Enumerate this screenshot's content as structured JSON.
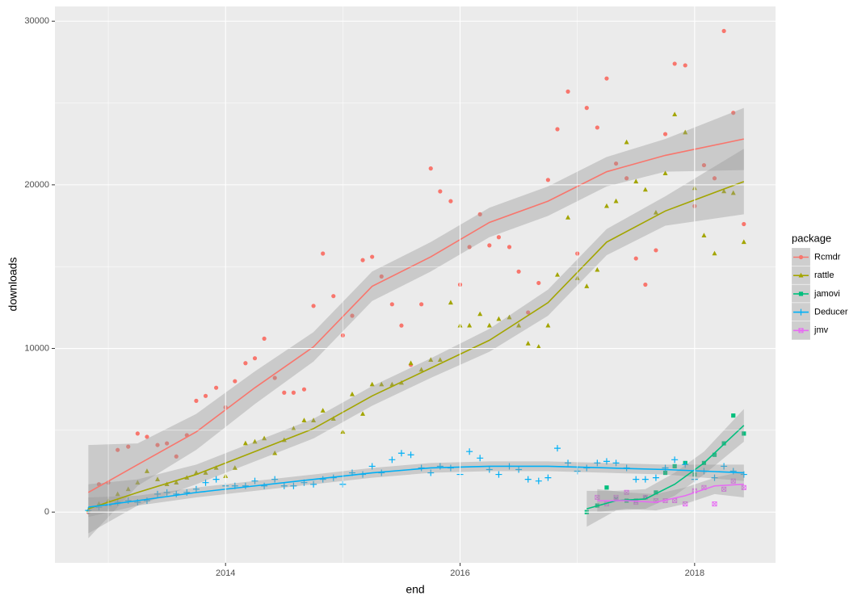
{
  "chart_data": {
    "type": "scatter",
    "x_label": "end",
    "y_label": "downloads",
    "xlim": [
      2012.545,
      2018.69
    ],
    "ylim": [
      -3100,
      30900
    ],
    "xticks": [
      2014,
      2016,
      2018
    ],
    "yticks": [
      0,
      10000,
      20000,
      30000
    ],
    "grid": true,
    "legend_title": "package",
    "legend_position": "right",
    "x": [
      2012.83,
      2012.92,
      2013,
      2013.08,
      2013.17,
      2013.25,
      2013.33,
      2013.42,
      2013.5,
      2013.58,
      2013.67,
      2013.75,
      2013.83,
      2013.92,
      2014,
      2014.08,
      2014.17,
      2014.25,
      2014.33,
      2014.42,
      2014.5,
      2014.58,
      2014.67,
      2014.75,
      2014.83,
      2014.92,
      2015,
      2015.08,
      2015.17,
      2015.25,
      2015.33,
      2015.42,
      2015.5,
      2015.58,
      2015.67,
      2015.75,
      2015.83,
      2015.92,
      2016,
      2016.08,
      2016.17,
      2016.25,
      2016.33,
      2016.42,
      2016.5,
      2016.58,
      2016.67,
      2016.75,
      2016.83,
      2016.92,
      2017,
      2017.08,
      2017.17,
      2017.25,
      2017.33,
      2017.42,
      2017.5,
      2017.58,
      2017.67,
      2017.75,
      2017.83,
      2017.92,
      2018,
      2018.08,
      2018.17,
      2018.25,
      2018.33,
      2018.42
    ],
    "series": [
      {
        "name": "Rcmdr",
        "color": "#F8766D",
        "shape": "circle",
        "values": [
          0,
          1700,
          1800,
          3800,
          4000,
          4800,
          4600,
          4100,
          4200,
          3400,
          4700,
          6800,
          7100,
          7600,
          6400,
          8000,
          9100,
          9400,
          10600,
          8200,
          7300,
          7300,
          7500,
          12600,
          15800,
          13200,
          10800,
          12000,
          15400,
          15600,
          14400,
          12700,
          11400,
          9000,
          12700,
          21000,
          19600,
          19000,
          13900,
          16200,
          18200,
          16300,
          16800,
          16200,
          14700,
          12200,
          14000,
          20300,
          23400,
          25700,
          15800,
          24700,
          23500,
          26500,
          21300,
          20400,
          15500,
          13900,
          16000,
          23100,
          27400,
          27300,
          18700,
          21200,
          20400,
          29400,
          24400,
          17600
        ],
        "smooth": {
          "x": [
            2012.83,
            2013.25,
            2013.75,
            2014.25,
            2014.75,
            2015.25,
            2015.75,
            2016.25,
            2016.75,
            2017.25,
            2017.75,
            2018.42
          ],
          "values": [
            1200,
            2900,
            4900,
            7600,
            10100,
            13800,
            15600,
            17700,
            19000,
            20800,
            21800,
            22800
          ],
          "lower": [
            -1600,
            1600,
            3800,
            6600,
            9200,
            12900,
            14700,
            16800,
            18100,
            19900,
            20800,
            20900
          ],
          "upper": [
            4100,
            4200,
            6000,
            8600,
            11000,
            14700,
            16500,
            18600,
            19900,
            21700,
            22800,
            24700
          ]
        }
      },
      {
        "name": "rattle",
        "color": "#A3A500",
        "shape": "triangle",
        "values": [
          100,
          500,
          700,
          1100,
          1400,
          1800,
          2500,
          2000,
          1700,
          1800,
          2100,
          2400,
          2400,
          2700,
          2200,
          2700,
          4200,
          4300,
          4500,
          3600,
          4400,
          5100,
          5600,
          5600,
          6200,
          5700,
          4900,
          7200,
          6000,
          7800,
          7800,
          7800,
          7900,
          9100,
          8700,
          9300,
          9300,
          12800,
          11400,
          11400,
          12100,
          11400,
          11800,
          11900,
          11400,
          10300,
          10100,
          11400,
          14500,
          18000,
          14300,
          13800,
          14800,
          18700,
          19000,
          22600,
          20200,
          19700,
          18300,
          20700,
          24300,
          23200,
          19800,
          16900,
          15800,
          19600,
          19500,
          16500
        ],
        "smooth": {
          "x": [
            2012.83,
            2013.25,
            2013.75,
            2014.25,
            2014.75,
            2015.25,
            2015.75,
            2016.25,
            2016.75,
            2017.25,
            2017.75,
            2018.42
          ],
          "values": [
            200,
            1200,
            2300,
            3700,
            5100,
            7100,
            8800,
            10500,
            12800,
            16500,
            18400,
            20200
          ],
          "lower": [
            -1300,
            400,
            1700,
            3100,
            4500,
            6500,
            8200,
            9800,
            12000,
            15700,
            17500,
            18200
          ],
          "upper": [
            1700,
            2000,
            2900,
            4300,
            5700,
            7700,
            9400,
            11200,
            13600,
            17300,
            19300,
            22200
          ]
        }
      },
      {
        "name": "jamovi",
        "color": "#00BF7D",
        "shape": "square",
        "values": [
          null,
          null,
          null,
          null,
          null,
          null,
          null,
          null,
          null,
          null,
          null,
          null,
          null,
          null,
          null,
          null,
          null,
          null,
          null,
          null,
          null,
          null,
          null,
          null,
          null,
          null,
          null,
          null,
          null,
          null,
          null,
          null,
          null,
          null,
          null,
          null,
          null,
          null,
          null,
          null,
          null,
          null,
          null,
          null,
          null,
          null,
          null,
          null,
          null,
          null,
          null,
          0,
          400,
          1500,
          800,
          700,
          700,
          900,
          1200,
          2400,
          2800,
          3000,
          2300,
          3000,
          3500,
          4200,
          5900,
          4800
        ],
        "smooth": {
          "x": [
            2017.08,
            2017.33,
            2017.58,
            2017.83,
            2018.08,
            2018.42
          ],
          "values": [
            200,
            700,
            800,
            1700,
            3000,
            5300
          ],
          "lower": [
            -900,
            100,
            200,
            1000,
            2300,
            4300
          ],
          "upper": [
            1300,
            1300,
            1400,
            2400,
            3700,
            6300
          ]
        }
      },
      {
        "name": "Deducer",
        "color": "#00B0F6",
        "shape": "plus",
        "values": [
          100,
          300,
          400,
          600,
          700,
          600,
          700,
          1100,
          1200,
          1100,
          1200,
          1400,
          1800,
          2000,
          1600,
          1600,
          1600,
          1900,
          1600,
          2000,
          1600,
          1600,
          1800,
          1700,
          2000,
          2100,
          1700,
          2400,
          2300,
          2800,
          2400,
          3200,
          3600,
          3500,
          2700,
          2400,
          2800,
          2700,
          2300,
          3700,
          3300,
          2600,
          2300,
          2800,
          2600,
          2000,
          1900,
          2100,
          3900,
          3000,
          2500,
          2700,
          3000,
          3100,
          3000,
          2700,
          2000,
          2000,
          2100,
          2700,
          3200,
          2900,
          2000,
          2500,
          2100,
          2800,
          2500,
          2300
        ],
        "smooth": {
          "x": [
            2012.83,
            2013.25,
            2013.75,
            2014.25,
            2014.75,
            2015.25,
            2015.75,
            2016.25,
            2016.75,
            2017.25,
            2017.75,
            2018.42
          ],
          "values": [
            300,
            700,
            1200,
            1600,
            2000,
            2400,
            2700,
            2800,
            2800,
            2700,
            2600,
            2400
          ],
          "lower": [
            -300,
            400,
            900,
            1300,
            1700,
            2100,
            2400,
            2500,
            2500,
            2400,
            2300,
            1900
          ],
          "upper": [
            900,
            1000,
            1500,
            1900,
            2300,
            2700,
            3000,
            3100,
            3100,
            3000,
            2900,
            2900
          ]
        }
      },
      {
        "name": "jmv",
        "color": "#E76BF3",
        "shape": "square-x",
        "values": [
          null,
          null,
          null,
          null,
          null,
          null,
          null,
          null,
          null,
          null,
          null,
          null,
          null,
          null,
          null,
          null,
          null,
          null,
          null,
          null,
          null,
          null,
          null,
          null,
          null,
          null,
          null,
          null,
          null,
          null,
          null,
          null,
          null,
          null,
          null,
          null,
          null,
          null,
          null,
          null,
          null,
          null,
          null,
          null,
          null,
          null,
          null,
          null,
          null,
          null,
          null,
          null,
          900,
          500,
          900,
          1200,
          600,
          900,
          700,
          700,
          700,
          500,
          1300,
          1500,
          500,
          1400,
          1900,
          1500
        ],
        "smooth": {
          "x": [
            2017.17,
            2017.42,
            2017.67,
            2017.92,
            2018.17,
            2018.42
          ],
          "values": [
            700,
            700,
            600,
            1000,
            1600,
            1700
          ],
          "lower": [
            0,
            200,
            100,
            500,
            1100,
            900
          ],
          "upper": [
            1400,
            1200,
            1100,
            1500,
            2100,
            2500
          ]
        }
      }
    ]
  }
}
